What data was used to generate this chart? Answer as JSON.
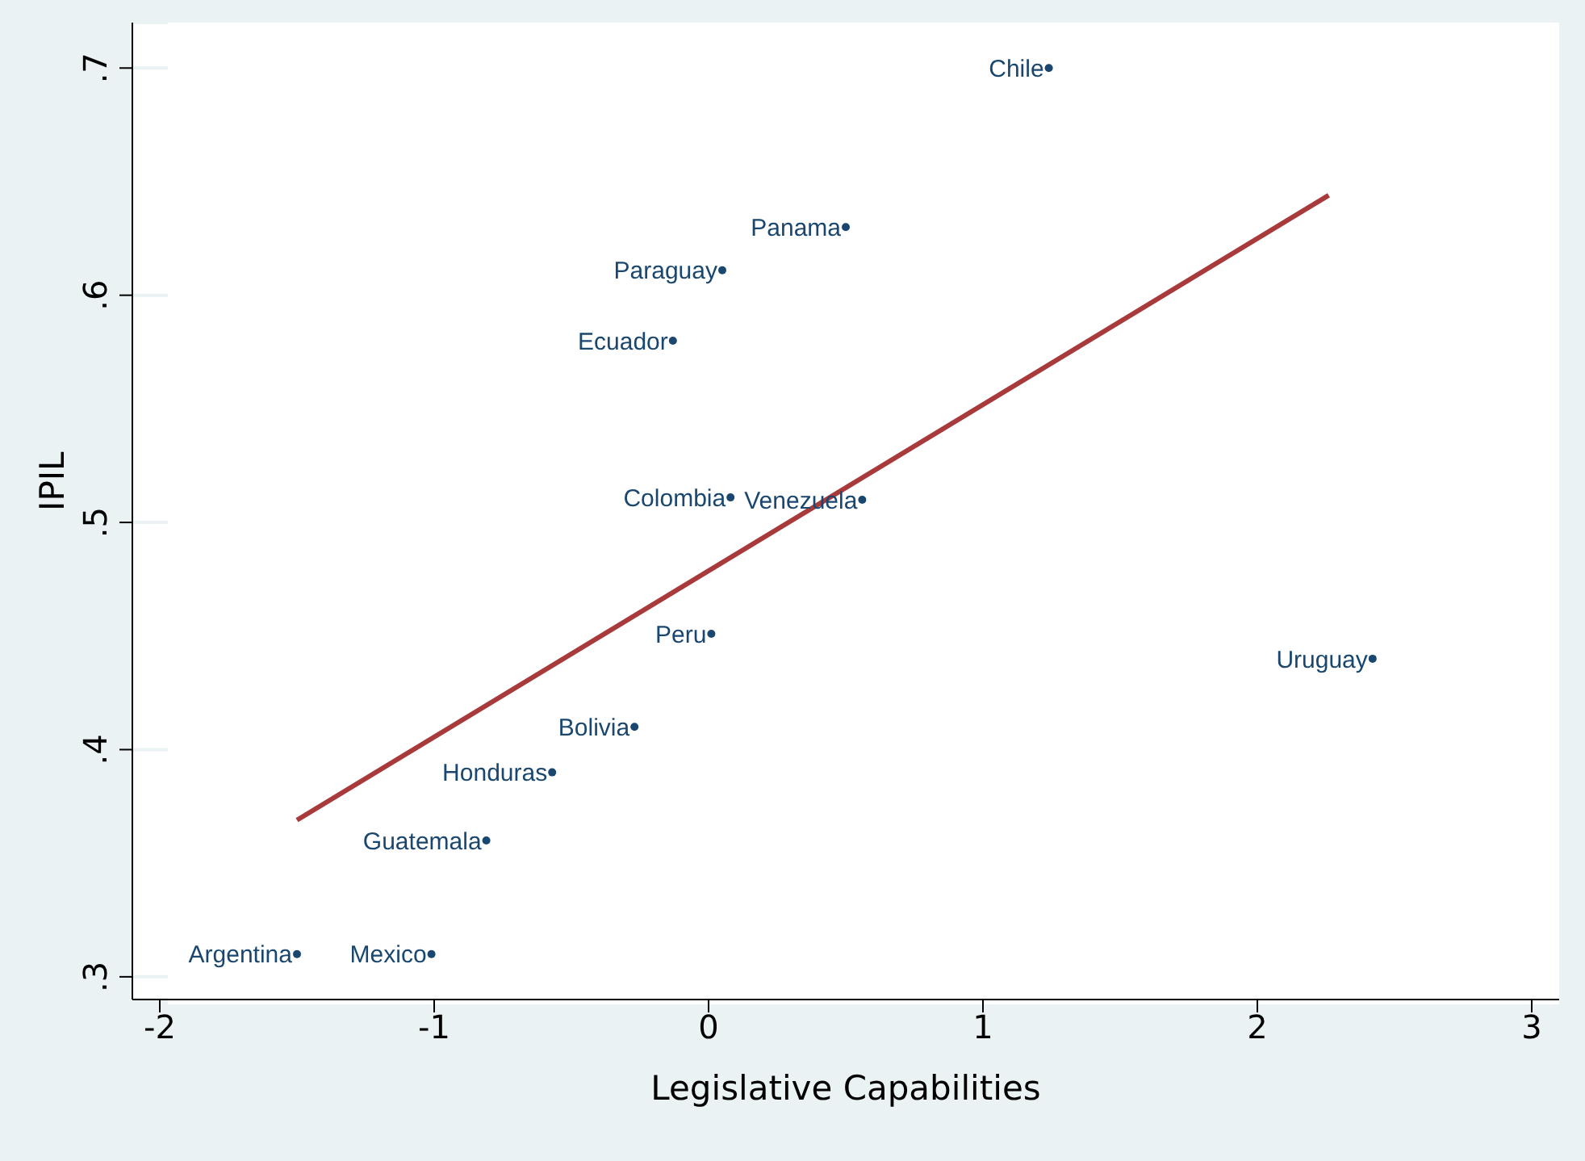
{
  "chart_data": {
    "type": "scatter",
    "xlabel": "Legislative Capabilities",
    "ylabel": "IPIL",
    "xlim": [
      -2.1,
      3.1
    ],
    "xticks": [
      -2,
      -1,
      0,
      1,
      2,
      3
    ],
    "ylim": [
      0.29,
      0.72
    ],
    "yticks": [
      {
        "value": 0.3,
        "label": ".3"
      },
      {
        "value": 0.4,
        "label": ".4"
      },
      {
        "value": 0.5,
        "label": ".5"
      },
      {
        "value": 0.6,
        "label": ".6"
      },
      {
        "value": 0.7,
        "label": ".7"
      }
    ],
    "grid": "y",
    "legend": false,
    "marker": "circle",
    "series": [
      {
        "color": "#1a476f",
        "x": [
          1.24,
          0.5,
          0.05,
          -0.13,
          0.08,
          0.56,
          0.01,
          2.42,
          -0.27,
          -0.57,
          -0.81,
          -1.5,
          -1.01
        ],
        "values": [
          0.7,
          0.63,
          0.611,
          0.58,
          0.511,
          0.51,
          0.451,
          0.44,
          0.41,
          0.39,
          0.36,
          0.31,
          0.31
        ]
      },
      {
        "type": "line",
        "color": "#a83a3c",
        "marker": "none",
        "line_style": "solid",
        "x": [
          -1.5,
          2.26
        ],
        "values": [
          0.369,
          0.644
        ]
      }
    ],
    "annotations": [
      {
        "text": "Chile",
        "x": 1.24,
        "y": 0.7
      },
      {
        "text": "Panama",
        "x": 0.5,
        "y": 0.63
      },
      {
        "text": "Paraguay",
        "x": 0.05,
        "y": 0.611
      },
      {
        "text": "Ecuador",
        "x": -0.13,
        "y": 0.58
      },
      {
        "text": "Colombia",
        "x": 0.08,
        "y": 0.511
      },
      {
        "text": "Venezuela",
        "x": 0.56,
        "y": 0.51
      },
      {
        "text": "Peru",
        "x": 0.01,
        "y": 0.451
      },
      {
        "text": "Uruguay",
        "x": 2.42,
        "y": 0.44
      },
      {
        "text": "Bolivia",
        "x": -0.27,
        "y": 0.41
      },
      {
        "text": "Honduras",
        "x": -0.57,
        "y": 0.39
      },
      {
        "text": "Guatemala",
        "x": -0.81,
        "y": 0.36
      },
      {
        "text": "Argentina",
        "x": -1.5,
        "y": 0.31
      },
      {
        "text": "Mexico",
        "x": -1.01,
        "y": 0.31
      }
    ]
  }
}
